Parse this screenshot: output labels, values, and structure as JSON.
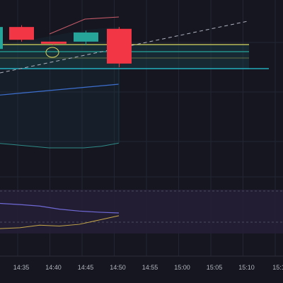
{
  "colors": {
    "background": "#15161f",
    "grid": "#232533",
    "bull": "#26a69a",
    "bear": "#f23645",
    "yellow_line": "#d9d35b",
    "cyan_line": "#27c8d8",
    "band_fill": "#1a3a44",
    "upper_band": "#c75b6a",
    "mid_line": "#3d6fcf",
    "lower_band": "#2f8a87",
    "dashed_trend": "#b0b3c0",
    "osc_fill": "#241f36",
    "osc_line": "#6f69d6",
    "osc_signal": "#c7a94a",
    "axis_text": "#b2b5be"
  },
  "chart_data": {
    "type": "candlestick",
    "time_axis": {
      "tick_labels": [
        "14:35",
        "14:40",
        "14:45",
        "14:50",
        "14:55",
        "15:00",
        "15:05",
        "15:10",
        "15:1"
      ]
    },
    "candles": [
      {
        "dir": "up",
        "open": 72,
        "close": 84,
        "high": 86,
        "low": 70
      },
      {
        "dir": "down",
        "open": 84,
        "close": 77,
        "high": 85,
        "low": 76
      },
      {
        "dir": "down",
        "open": 76,
        "close": 75,
        "high": 76,
        "low": 74
      },
      {
        "dir": "up",
        "open": 76,
        "close": 81,
        "high": 82,
        "low": 74
      },
      {
        "dir": "down",
        "open": 83,
        "close": 64,
        "high": 84,
        "low": 62
      }
    ],
    "levels": [
      {
        "name": "yellow-level",
        "value": 72
      },
      {
        "name": "green-level",
        "value": 69
      },
      {
        "name": "cyan-level",
        "value": 64
      }
    ],
    "bands": {
      "upper": [
        80,
        82,
        84,
        86,
        88,
        90,
        91,
        92
      ],
      "middle": [
        49,
        50,
        51,
        52,
        53,
        54,
        55,
        56
      ],
      "lower": [
        19,
        18,
        17,
        16,
        16,
        16,
        17,
        19
      ]
    },
    "oscillator": {
      "line": [
        0.2,
        0.25,
        0.4,
        0.35,
        0.45,
        0.7,
        0.95
      ],
      "signal": [
        0.75,
        0.72,
        0.68,
        0.6,
        0.55,
        0.52,
        0.5
      ]
    }
  }
}
